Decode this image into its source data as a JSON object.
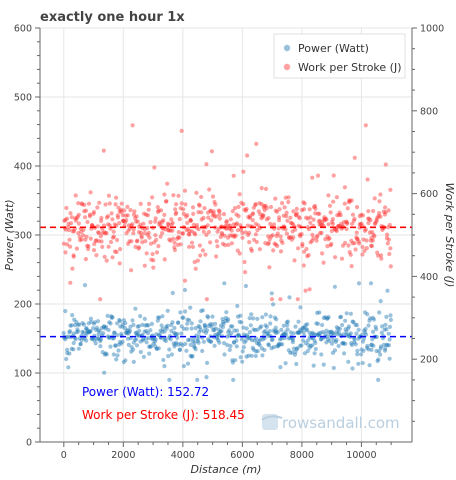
{
  "chart_data": {
    "type": "scatter",
    "title": "exactly one hour 1x",
    "xlabel": "Distance (m)",
    "ylabel_left": "Power (Watt)",
    "ylabel_right": "Work per Stroke (J)",
    "xlim": [
      -800,
      11700
    ],
    "ylim_left": [
      0,
      600
    ],
    "ylim_right": [
      0,
      1000
    ],
    "xticks": [
      "0",
      "2000",
      "4000",
      "6000",
      "8000",
      "10000"
    ],
    "yticks_left": [
      "100",
      "200",
      "300",
      "400",
      "500",
      "600"
    ],
    "yticks_right": [
      "200",
      "400",
      "600",
      "800",
      "1000"
    ],
    "grid": true,
    "legend_position": "top-right",
    "series": [
      {
        "name": "Power (Watt)",
        "axis": "left",
        "color": "#1f77b4",
        "alpha": 0.45,
        "mean": 152.72,
        "typical_range": [
          105,
          205
        ],
        "x_range": [
          0,
          11000
        ]
      },
      {
        "name": "Work per Stroke (J)",
        "axis": "right",
        "color": "#ff2e2e",
        "alpha": 0.45,
        "mean": 518.45,
        "typical_range": [
          390,
          690
        ],
        "x_range": [
          0,
          11000
        ]
      }
    ],
    "reference_lines": [
      {
        "series": "Power (Watt)",
        "value": 152.72,
        "color": "#0000ff",
        "style": "dashed"
      },
      {
        "series": "Work per Stroke (J)",
        "value": 518.45,
        "color": "#ff0000",
        "style": "dashed"
      }
    ],
    "annotations": [
      {
        "text": "Power (Watt): 152.72",
        "color": "#0000ff"
      },
      {
        "text": "Work per Stroke (J): 518.45",
        "color": "#ff0000"
      }
    ],
    "watermark": "rowsandall.com"
  }
}
